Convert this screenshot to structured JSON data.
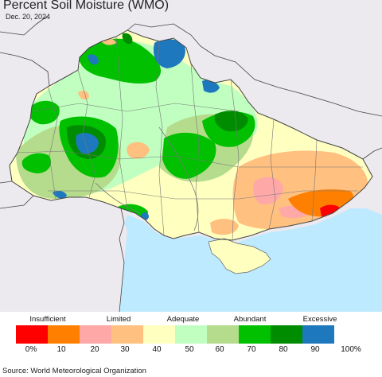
{
  "title": "Percent Soil Moisture (WMO)",
  "date": "Dec. 20, 2024",
  "legend": {
    "categories": [
      "Insufficient",
      "Limited",
      "Adequate",
      "Abundant",
      "Excessive"
    ],
    "colors": [
      "#ff0000",
      "#ff8000",
      "#ffa8a8",
      "#ffc080",
      "#ffffc0",
      "#c0ffc0",
      "#b4dc8c",
      "#00c000",
      "#008c00",
      "#1e78be"
    ],
    "ticks": [
      "0%",
      "10",
      "20",
      "30",
      "40",
      "50",
      "60",
      "70",
      "80",
      "90",
      "100%"
    ]
  },
  "source": "Source: World Meteorological Organization"
}
